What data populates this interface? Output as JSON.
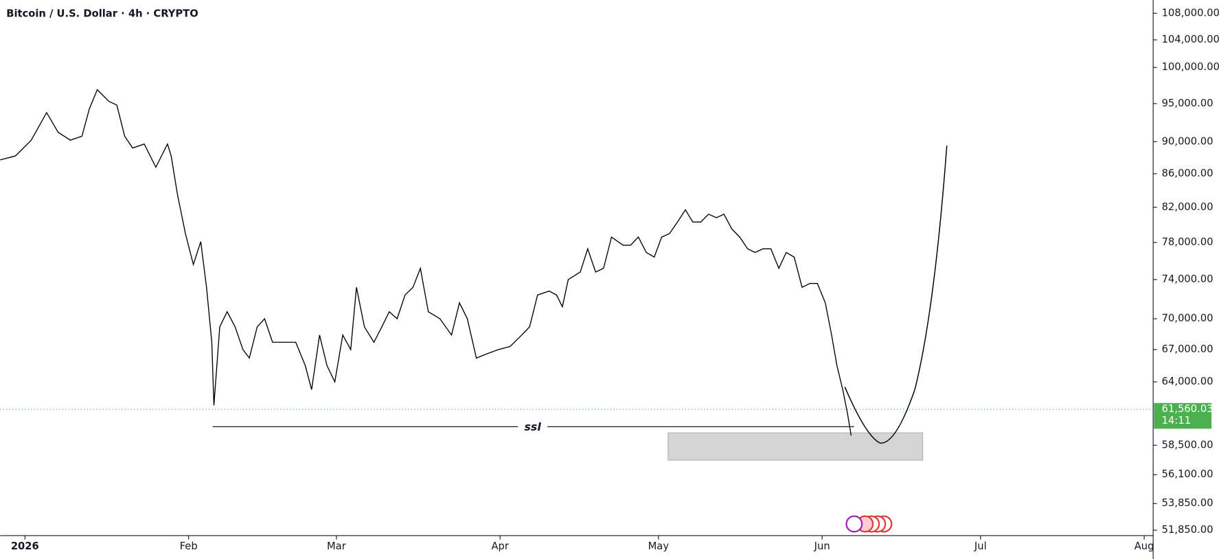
{
  "chart_data": {
    "type": "line",
    "title": "Bitcoin / U.S. Dollar · 4h · CRYPTO",
    "color": "#000000",
    "y_scale": "log",
    "x": [
      -4.7,
      -1.8,
      1.2,
      4.1,
      6.3,
      8.6,
      10.8,
      12.2,
      13.7,
      15.9,
      17.4,
      18.9,
      20.4,
      22.6,
      24.8,
      27.0,
      27.7,
      28.9,
      30.4,
      31.9,
      33.3,
      34.4,
      35.4,
      35.8,
      36.9,
      38.3,
      39.8,
      41.3,
      42.5,
      44.0,
      45.4,
      46.9,
      49.1,
      51.3,
      53.1,
      54.3,
      55.8,
      57.2,
      58.7,
      60.2,
      61.7,
      62.8,
      64.3,
      66.1,
      67.6,
      69.0,
      70.5,
      72.0,
      73.5,
      74.9,
      76.4,
      78.6,
      80.8,
      82.3,
      83.8,
      85.5,
      87.5,
      89.7,
      91.9,
      94.1,
      95.6,
      97.1,
      99.3,
      100.7,
      101.8,
      102.9,
      105.2,
      106.6,
      108.1,
      109.6,
      111.1,
      113.3,
      114.7,
      116.2,
      117.7,
      119.2,
      120.6,
      122.1,
      123.6,
      125.1,
      126.5,
      128.0,
      129.5,
      131.0,
      132.4,
      133.9,
      135.4,
      136.9,
      138.3,
      139.8,
      141.3,
      142.8,
      144.2,
      145.7,
      147.2,
      148.7,
      150.1,
      151.6,
      152.8,
      153.8,
      154.9,
      155.8,
      156.5
    ],
    "values": [
      87700,
      88200,
      90200,
      93800,
      91200,
      90200,
      90700,
      94300,
      96900,
      95300,
      94800,
      90700,
      89200,
      89700,
      86800,
      89700,
      88200,
      83500,
      79000,
      75600,
      78100,
      73200,
      67700,
      61900,
      69200,
      70700,
      69200,
      67000,
      66200,
      69200,
      70000,
      67700,
      67700,
      67700,
      65500,
      63300,
      68400,
      65500,
      64000,
      68400,
      67000,
      73200,
      69200,
      67700,
      69200,
      70700,
      70000,
      72400,
      73200,
      75200,
      70700,
      70000,
      68400,
      71600,
      70000,
      66200,
      66600,
      67000,
      67300,
      68400,
      69200,
      72400,
      72800,
      72400,
      71200,
      74000,
      74800,
      77300,
      74800,
      75200,
      78600,
      77700,
      77700,
      78600,
      76900,
      76400,
      78600,
      79000,
      80300,
      81700,
      80300,
      80300,
      81200,
      80800,
      81200,
      79500,
      78600,
      77300,
      76900,
      77300,
      77300,
      75200,
      76900,
      76400,
      73200,
      73600,
      73600,
      71600,
      68400,
      65500,
      63300,
      61200,
      59300
    ],
    "xlim": [
      -4.7,
      213.7
    ],
    "xticks": [
      {
        "value": 0,
        "label": "2026"
      },
      {
        "value": 31,
        "label": "Feb"
      },
      {
        "value": 59,
        "label": "Mar"
      },
      {
        "value": 90,
        "label": "Apr"
      },
      {
        "value": 120,
        "label": "May"
      },
      {
        "value": 151,
        "label": "Jun"
      },
      {
        "value": 181,
        "label": "Jul"
      },
      {
        "value": 212,
        "label": "Aug"
      }
    ],
    "ylim": [
      51450,
      110050
    ],
    "yticks": [
      {
        "value": 108000,
        "label": "108,000.00"
      },
      {
        "value": 104000,
        "label": "104,000.00"
      },
      {
        "value": 100000,
        "label": "100,000.00"
      },
      {
        "value": 95000,
        "label": "95,000.00"
      },
      {
        "value": 90000,
        "label": "90,000.00"
      },
      {
        "value": 86000,
        "label": "86,000.00"
      },
      {
        "value": 82000,
        "label": "82,000.00"
      },
      {
        "value": 78000,
        "label": "78,000.00"
      },
      {
        "value": 74000,
        "label": "74,000.00"
      },
      {
        "value": 70000,
        "label": "70,000.00"
      },
      {
        "value": 67000,
        "label": "67,000.00"
      },
      {
        "value": 64000,
        "label": "64,000.00"
      },
      {
        "value": 58500,
        "label": "58,500.00"
      },
      {
        "value": 56100,
        "label": "56,100.00"
      },
      {
        "value": 53850,
        "label": "53,850.00"
      },
      {
        "value": 51850,
        "label": "51,850.00"
      }
    ],
    "last_price": 61560.03,
    "last_price_label": "61,560.03",
    "countdown": "14:11",
    "annotation": "ssl"
  }
}
